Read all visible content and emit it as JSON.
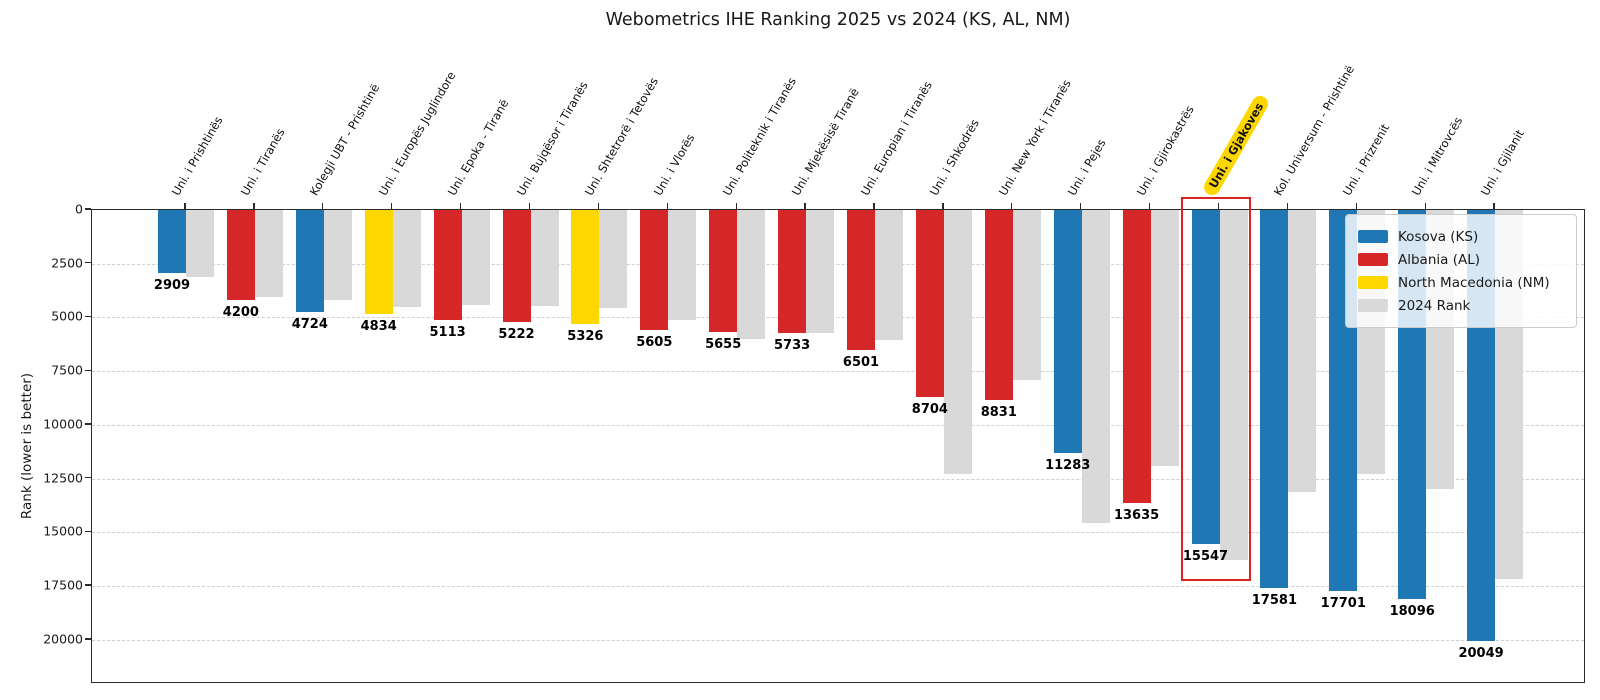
{
  "title": "Webometrics IHE Ranking 2025 vs 2024 (KS, AL, NM)",
  "colors": {
    "KS": "#1f77b4",
    "AL": "#d62728",
    "NM": "#ffd700",
    "rank2024": "#d9d9d9",
    "grid": "#cfcfcf",
    "highlight_box": "#dd2222",
    "highlight_label_bg": "#ffd700"
  },
  "legend": [
    {
      "label": "Kosova (KS)",
      "color": "#1f77b4"
    },
    {
      "label": "Albania (AL)",
      "color": "#d62728"
    },
    {
      "label": "North Macedonia (NM)",
      "color": "#ffd700"
    },
    {
      "label": "2024 Rank",
      "color": "#d9d9d9"
    }
  ],
  "chart_data": {
    "type": "bar",
    "title": "Webometrics IHE Ranking 2025 vs 2024 (KS, AL, NM)",
    "ylabel": "Rank (lower is better)",
    "y_axis_inverted": true,
    "grid": true,
    "ylim": [
      0,
      22050
    ],
    "yticks": [
      0,
      2500,
      5000,
      7500,
      10000,
      12500,
      15000,
      17500,
      20000
    ],
    "legend_position": "upper right",
    "categories": [
      "Uni. i Prishtinës",
      "Uni. i Tiranës",
      "Kolegji UBT - Prishtinë",
      "Uni. i Europës Juglindore",
      "Uni. Epoka - Tiranë",
      "Uni. Bujqësor i Tiranës",
      "Uni. Shtetrorë i Tetovës",
      "Uni. i Vlorës",
      "Uni. Politeknik i Tiranës",
      "Uni. Mjekësisë Tiranë",
      "Uni. Europian i Tiranës",
      "Uni. i Shkodrës",
      "Uni. New York i Tiranës",
      "Uni. i Pejes",
      "Uni. i Gjirokastrës",
      "Uni. i Gjakoves",
      "Kol. Universum - Prishtinë",
      "Uni. i Prizrenit",
      "Uni. i Mitrovcës",
      "Uni. i Gjilanit"
    ],
    "countries": [
      "KS",
      "AL",
      "KS",
      "NM",
      "AL",
      "AL",
      "NM",
      "AL",
      "AL",
      "AL",
      "AL",
      "AL",
      "AL",
      "KS",
      "AL",
      "KS",
      "KS",
      "KS",
      "KS",
      "KS"
    ],
    "series": [
      {
        "name": "2025 Rank",
        "values": [
          2909,
          4200,
          4724,
          4834,
          5113,
          5222,
          5326,
          5605,
          5655,
          5733,
          6501,
          8704,
          8831,
          11283,
          13635,
          15547,
          17581,
          17701,
          18096,
          20049
        ],
        "value_labels_shown": true
      },
      {
        "name": "2024 Rank",
        "values": [
          3100,
          4050,
          4200,
          4500,
          4400,
          4450,
          4550,
          5100,
          6000,
          5700,
          6050,
          12300,
          7900,
          14550,
          11900,
          16300,
          13100,
          12300,
          13000,
          17150
        ],
        "estimated_from_pixels": true
      }
    ],
    "highlight": {
      "index": 15,
      "category": "Uni. i Gjakoves"
    }
  }
}
